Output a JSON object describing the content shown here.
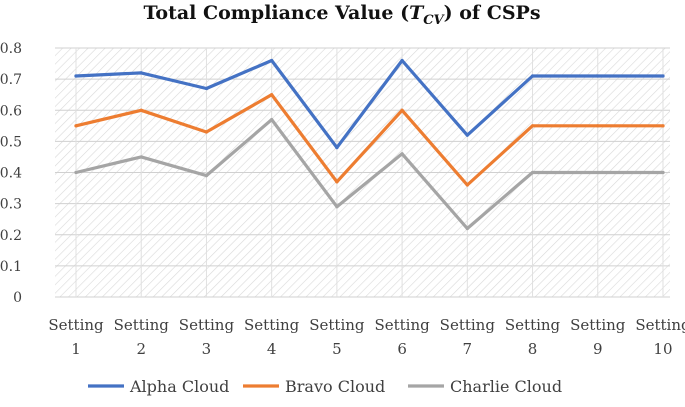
{
  "chart_data": {
    "type": "line",
    "title": {
      "prefix": "Total Compliance Value (",
      "symbol": "T",
      "subscript": "CV",
      "suffix": ") of CSPs"
    },
    "xlabel": "",
    "ylabel": "",
    "ylim": [
      0,
      0.8
    ],
    "yticks": [
      "0",
      "0.1",
      "0.2",
      "0.3",
      "0.4",
      "0.5",
      "0.6",
      "0.7",
      "0.8"
    ],
    "grid": true,
    "legend_position": "bottom",
    "categories": [
      {
        "line1": "Setting",
        "line2": "1"
      },
      {
        "line1": "Setting",
        "line2": "2"
      },
      {
        "line1": "Setting",
        "line2": "3"
      },
      {
        "line1": "Setting",
        "line2": "4"
      },
      {
        "line1": "Setting",
        "line2": "5"
      },
      {
        "line1": "Setting",
        "line2": "6"
      },
      {
        "line1": "Setting",
        "line2": "7"
      },
      {
        "line1": "Setting",
        "line2": "8"
      },
      {
        "line1": "Setting",
        "line2": "9"
      },
      {
        "line1": "Setting",
        "line2": "10"
      }
    ],
    "series": [
      {
        "name": "Alpha Cloud",
        "color": "#4472C4",
        "values": [
          0.71,
          0.72,
          0.67,
          0.76,
          0.48,
          0.76,
          0.52,
          0.71,
          0.71,
          0.71
        ]
      },
      {
        "name": "Bravo Cloud",
        "color": "#ED7D31",
        "values": [
          0.55,
          0.6,
          0.53,
          0.65,
          0.37,
          0.6,
          0.36,
          0.55,
          0.55,
          0.55
        ]
      },
      {
        "name": "Charlie Cloud",
        "color": "#A5A5A5",
        "values": [
          0.4,
          0.45,
          0.39,
          0.57,
          0.29,
          0.46,
          0.22,
          0.4,
          0.4,
          0.4
        ]
      }
    ]
  }
}
